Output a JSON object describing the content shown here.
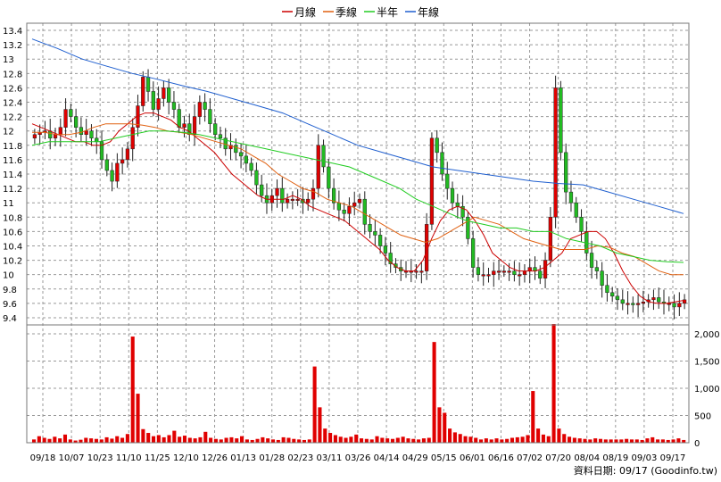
{
  "legend": [
    {
      "label": "月線",
      "color": "#cc0000"
    },
    {
      "label": "季線",
      "color": "#e06010"
    },
    {
      "label": "半年",
      "color": "#22cc22"
    },
    {
      "label": "年線",
      "color": "#1f5fcf"
    }
  ],
  "source_note": "資料日期: 09/17  (Goodinfo.tw)",
  "chart_data": [
    {
      "type": "candlestick",
      "title": "",
      "ylim": [
        9.3,
        13.5
      ],
      "y_ticks": [
        "13.4",
        "13.2",
        "13",
        "12.8",
        "12.6",
        "12.4",
        "12.2",
        "12",
        "11.8",
        "11.6",
        "11.4",
        "11.2",
        "11",
        "10.8",
        "10.6",
        "10.4",
        "10.2",
        "10",
        "9.8",
        "9.6",
        "9.4"
      ],
      "x_ticks": [
        "09/18",
        "10/07",
        "10/23",
        "11/10",
        "11/25",
        "12/10",
        "12/26",
        "01/13",
        "01/28",
        "02/23",
        "03/11",
        "03/26",
        "04/14",
        "04/29",
        "05/15",
        "06/01",
        "06/16",
        "07/02",
        "07/20",
        "08/04",
        "08/19",
        "09/03",
        "09/17"
      ],
      "grid": true,
      "colors": {
        "up": "#e00000",
        "down": "#22bb22"
      },
      "close_approx": [
        11.95,
        11.98,
        12.0,
        11.9,
        11.95,
        12.05,
        12.3,
        12.2,
        12.05,
        11.95,
        12.0,
        11.9,
        11.85,
        11.6,
        11.45,
        11.3,
        11.55,
        11.6,
        11.75,
        12.05,
        12.35,
        12.75,
        12.55,
        12.3,
        12.45,
        12.6,
        12.4,
        12.3,
        12.05,
        12.1,
        11.95,
        12.2,
        12.4,
        12.3,
        12.1,
        11.95,
        11.9,
        11.75,
        11.8,
        11.7,
        11.65,
        11.55,
        11.45,
        11.25,
        11.1,
        11.0,
        11.1,
        11.2,
        11.0,
        11.05,
        11.05,
        11.05,
        11.0,
        11.05,
        11.2,
        11.8,
        11.5,
        11.2,
        11.0,
        10.9,
        10.85,
        10.95,
        11.0,
        11.05,
        10.7,
        10.6,
        10.55,
        10.4,
        10.3,
        10.15,
        10.1,
        10.05,
        10.05,
        10.05,
        10.05,
        10.05,
        10.7,
        11.9,
        11.7,
        11.4,
        11.2,
        11.0,
        10.95,
        10.8,
        10.5,
        10.1,
        10.0,
        10.0,
        10.0,
        10.05,
        10.05,
        10.05,
        10.05,
        10.0,
        10.0,
        10.05,
        10.1,
        10.05,
        9.95,
        10.2,
        10.8,
        12.6,
        11.7,
        11.15,
        11.0,
        10.8,
        10.6,
        10.3,
        10.1,
        10.05,
        9.85,
        9.75,
        9.7,
        9.65,
        9.6,
        9.6,
        9.58,
        9.6,
        9.62,
        9.65,
        9.68,
        9.62,
        9.6,
        9.6,
        9.55,
        9.6,
        9.65
      ]
    },
    {
      "type": "line",
      "series": [
        {
          "name": "月線",
          "color": "#cc0000",
          "values": [
            12.1,
            12.05,
            12.0,
            11.95,
            11.9,
            11.85,
            11.85,
            11.8,
            11.8,
            11.85,
            12.0,
            12.1,
            12.2,
            12.25,
            12.25,
            12.2,
            12.15,
            12.05,
            12.0,
            11.9,
            11.8,
            11.7,
            11.55,
            11.4,
            11.3,
            11.2,
            11.1,
            11.05,
            11.05,
            11.05,
            11.1,
            11.05,
            10.95,
            10.9,
            10.85,
            10.8,
            10.75,
            10.65,
            10.55,
            10.45,
            10.35,
            10.2,
            10.1,
            10.05,
            10.05,
            10.2,
            10.5,
            10.75,
            10.9,
            10.95,
            10.9,
            10.75,
            10.55,
            10.3,
            10.2,
            10.1,
            10.05,
            10.05,
            10.05,
            10.1,
            10.2,
            10.3,
            10.5,
            10.55,
            10.6,
            10.6,
            10.5,
            10.3,
            10.05,
            9.85,
            9.7,
            9.62,
            9.6,
            9.6,
            9.62,
            9.64
          ]
        },
        {
          "name": "季線",
          "color": "#e06010",
          "values": [
            11.98,
            11.98,
            11.95,
            11.95,
            11.98,
            12.05,
            12.1,
            12.1,
            12.1,
            12.08,
            12.05,
            12.0,
            11.98,
            11.95,
            11.9,
            11.85,
            11.8,
            11.75,
            11.65,
            11.55,
            11.4,
            11.3,
            11.2,
            11.15,
            11.05,
            11.0,
            10.95,
            10.85,
            10.75,
            10.65,
            10.55,
            10.5,
            10.45,
            10.5,
            10.6,
            10.7,
            10.8,
            10.75,
            10.7,
            10.6,
            10.5,
            10.45,
            10.4,
            10.35,
            10.35,
            10.35,
            10.4,
            10.38,
            10.3,
            10.25,
            10.15,
            10.05,
            10.0,
            10.0
          ]
        },
        {
          "name": "半年",
          "color": "#22cc22",
          "values": [
            11.8,
            11.85,
            11.85,
            11.85,
            11.85,
            11.9,
            11.95,
            12.0,
            12.0,
            11.98,
            11.95,
            11.9,
            11.85,
            11.8,
            11.75,
            11.7,
            11.65,
            11.6,
            11.55,
            11.5,
            11.4,
            11.3,
            11.2,
            11.05,
            10.95,
            10.85,
            10.75,
            10.7,
            10.65,
            10.65,
            10.6,
            10.6,
            10.5,
            10.45,
            10.4,
            10.3,
            10.25,
            10.2,
            10.18,
            10.17
          ]
        },
        {
          "name": "年線",
          "color": "#1f5fcf",
          "values": [
            13.28,
            13.15,
            13.0,
            12.9,
            12.8,
            12.72,
            12.63,
            12.55,
            12.45,
            12.35,
            12.25,
            12.1,
            11.95,
            11.8,
            11.7,
            11.6,
            11.5,
            11.45,
            11.4,
            11.35,
            11.3,
            11.27,
            11.25,
            11.15,
            11.05,
            10.95,
            10.85
          ]
        }
      ]
    },
    {
      "type": "bar",
      "ylabel": "",
      "ylim": [
        0,
        2000
      ],
      "y_ticks": [
        "2,000",
        "1,500",
        "1,000",
        "500",
        "0"
      ],
      "color": "#e00000",
      "values": [
        60,
        120,
        90,
        70,
        110,
        80,
        150,
        60,
        40,
        55,
        90,
        80,
        70,
        60,
        100,
        75,
        120,
        90,
        160,
        1950,
        900,
        250,
        180,
        120,
        140,
        100,
        140,
        220,
        110,
        130,
        90,
        80,
        100,
        200,
        90,
        70,
        60,
        90,
        100,
        80,
        120,
        60,
        50,
        70,
        100,
        80,
        60,
        50,
        100,
        90,
        70,
        60,
        50,
        60,
        1400,
        650,
        260,
        180,
        140,
        110,
        90,
        110,
        150,
        80,
        70,
        60,
        120,
        90,
        80,
        70,
        90,
        110,
        80,
        70,
        60,
        80,
        90,
        1850,
        650,
        550,
        260,
        190,
        160,
        120,
        110,
        90,
        60,
        80,
        60,
        80,
        60,
        70,
        90,
        100,
        110,
        140,
        950,
        260,
        150,
        120,
        2180,
        260,
        160,
        110,
        90,
        80,
        70,
        60,
        80,
        70,
        60,
        60,
        60,
        60,
        70,
        60,
        60,
        50,
        80,
        100,
        60,
        60,
        50,
        60,
        80,
        50
      ]
    }
  ]
}
